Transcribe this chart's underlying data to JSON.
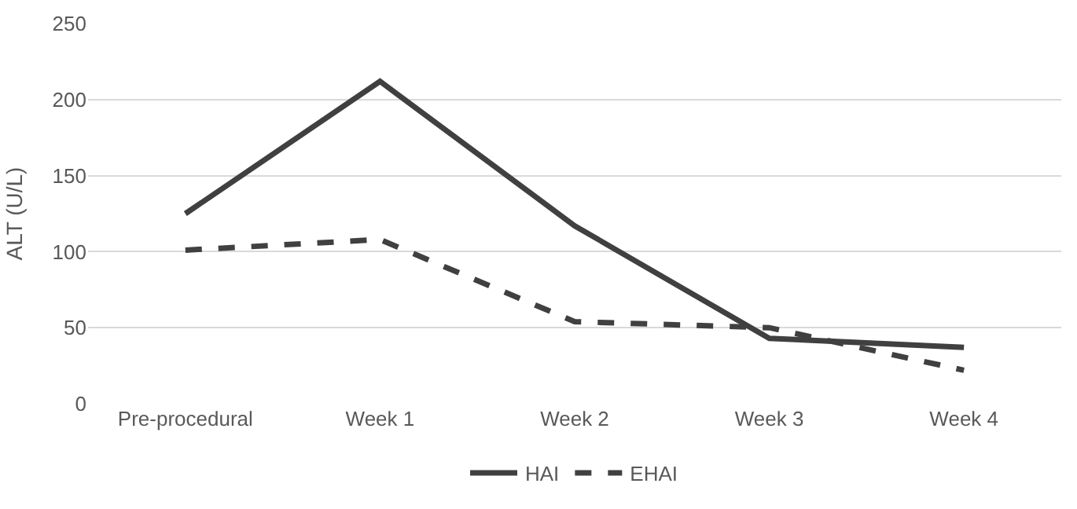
{
  "chart_data": {
    "type": "line",
    "ylabel": "ALT (U/L)",
    "categories": [
      "Pre-procedural",
      "Week 1",
      "Week 2",
      "Week 3",
      "Week 4"
    ],
    "series": [
      {
        "name": "HAI",
        "color": "#404040",
        "values": [
          125,
          212,
          117,
          43,
          37
        ],
        "line_style": "solid"
      },
      {
        "name": "EHAI",
        "color": "#404040",
        "values": [
          101,
          108,
          54,
          50,
          22
        ],
        "line_style": "dashed"
      }
    ],
    "ylim": [
      0,
      250
    ],
    "yticks": [
      0,
      50,
      100,
      150,
      200,
      250
    ],
    "grid": "y",
    "legend": "bottom",
    "marker": "none"
  }
}
